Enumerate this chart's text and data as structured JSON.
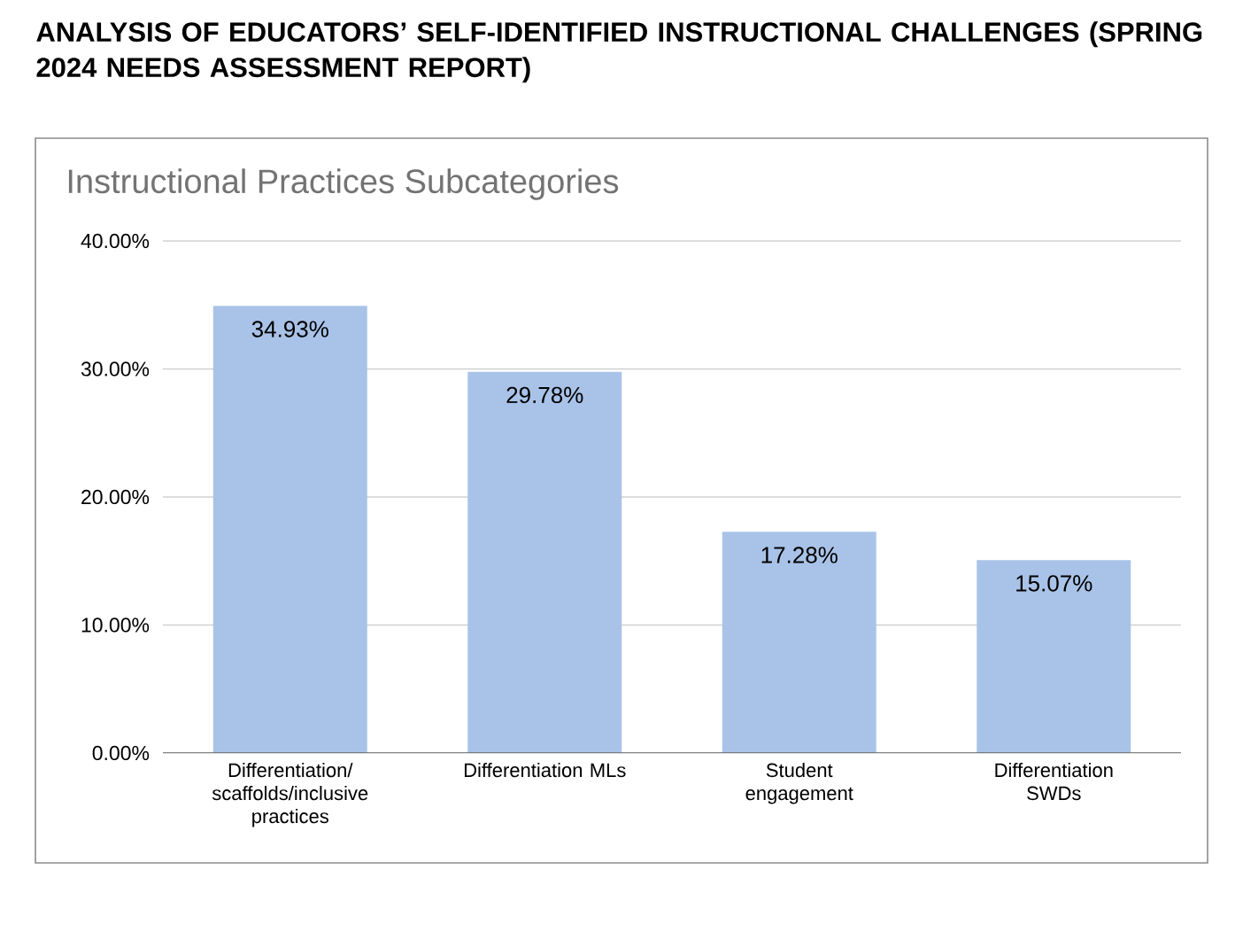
{
  "chart_data": {
    "type": "bar",
    "title": "ANALYSIS OF EDUCATORS’ SELF-IDENTIFIED INSTRUCTIONAL CHALLENGES (SPRING 2024 NEEDS ASSESSMENT REPORT)",
    "subtitle": "Instructional Practices Subcategories",
    "categories": [
      "Differentiation/ scaffolds/inclusive practices",
      "Differentiation MLs",
      "Student engagement",
      "Differentiation SWDs"
    ],
    "values": [
      34.93,
      29.78,
      17.28,
      15.07
    ],
    "value_labels": [
      "34.93%",
      "29.78%",
      "17.28%",
      "15.07%"
    ],
    "color": "#a9c3e8",
    "ylim": [
      0,
      40
    ],
    "yticks": [
      {
        "value": 0,
        "label": "0.00%"
      },
      {
        "value": 10,
        "label": "10.00%"
      },
      {
        "value": 20,
        "label": "20.00%"
      },
      {
        "value": 30,
        "label": "30.00%"
      },
      {
        "value": 40,
        "label": "40.00%"
      }
    ],
    "grid": "y"
  }
}
